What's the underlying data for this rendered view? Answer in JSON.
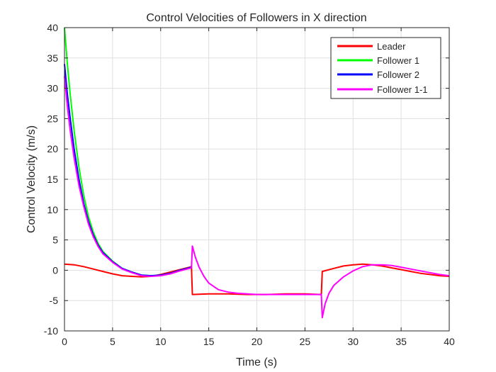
{
  "chart_data": {
    "type": "line",
    "title": "Control Velocities of Followers in X direction",
    "xlabel": "Time (s)",
    "ylabel": "Control Velocity (m/s)",
    "xlim": [
      0,
      40
    ],
    "ylim": [
      -10,
      40
    ],
    "xticks": [
      0,
      5,
      10,
      15,
      20,
      25,
      30,
      35,
      40
    ],
    "yticks": [
      -10,
      -5,
      0,
      5,
      10,
      15,
      20,
      25,
      30,
      35,
      40
    ],
    "grid": true,
    "legend_position": "top-right",
    "series": [
      {
        "name": "Leader",
        "color": "#ff0000",
        "x": [
          0,
          1,
          2,
          3,
          4,
          5,
          6,
          7,
          8,
          9,
          10,
          11,
          12,
          13.2,
          13.3,
          15,
          17,
          19,
          20,
          21,
          23,
          25,
          26.7,
          26.8,
          28,
          29,
          30,
          31,
          32,
          33,
          34,
          35,
          36,
          37,
          38,
          39,
          40
        ],
        "y": [
          1.0,
          0.9,
          0.6,
          0.2,
          -0.2,
          -0.6,
          -0.9,
          -1.0,
          -1.1,
          -1.0,
          -0.7,
          -0.3,
          0.1,
          0.6,
          -4.0,
          -3.9,
          -3.9,
          -4.0,
          -4.0,
          -4.0,
          -3.9,
          -3.9,
          -4.0,
          -0.2,
          0.3,
          0.7,
          0.9,
          1.0,
          0.9,
          0.7,
          0.4,
          0.1,
          -0.2,
          -0.5,
          -0.7,
          -0.9,
          -1.0
        ]
      },
      {
        "name": "Follower 1",
        "color": "#00ff00",
        "x": [
          0,
          0.3,
          0.6,
          1,
          1.5,
          2,
          2.5,
          3,
          3.5,
          4,
          5,
          6,
          7,
          8,
          9,
          10,
          11,
          12,
          13.2
        ],
        "y": [
          40.0,
          34.0,
          29.0,
          23.0,
          17.0,
          12.3,
          8.8,
          6.3,
          4.4,
          3.1,
          1.5,
          0.3,
          -0.3,
          -0.8,
          -0.9,
          -0.8,
          -0.5,
          0.0,
          0.5
        ]
      },
      {
        "name": "Follower 2",
        "color": "#0000ff",
        "x": [
          0,
          0.3,
          0.6,
          1,
          1.5,
          2,
          2.5,
          3,
          3.5,
          4,
          5,
          6,
          7,
          8,
          9,
          10,
          11,
          12,
          13.2
        ],
        "y": [
          34.0,
          29.0,
          25.0,
          20.0,
          15.0,
          11.0,
          8.0,
          5.8,
          4.1,
          2.9,
          1.4,
          0.3,
          -0.3,
          -0.8,
          -0.9,
          -0.8,
          -0.5,
          0.0,
          0.5
        ]
      },
      {
        "name": "Follower 1-1",
        "color": "#ff00ff",
        "x": [
          0,
          0.3,
          0.6,
          1,
          1.5,
          2,
          2.5,
          3,
          3.5,
          4,
          5,
          6,
          7,
          8,
          9,
          10,
          11,
          12,
          13.2,
          13.3,
          13.6,
          14,
          14.5,
          15,
          16,
          17,
          18,
          20,
          22,
          24,
          26.7,
          26.8,
          27.1,
          27.5,
          28,
          29,
          30,
          31,
          32,
          33,
          34,
          35,
          36,
          37,
          38,
          39,
          40
        ],
        "y": [
          32.0,
          27.0,
          23.0,
          18.5,
          14.0,
          10.5,
          7.6,
          5.5,
          3.9,
          2.7,
          1.3,
          0.2,
          -0.4,
          -0.9,
          -1.0,
          -0.9,
          -0.6,
          -0.1,
          0.4,
          4.0,
          2.2,
          0.5,
          -1.0,
          -2.1,
          -3.2,
          -3.6,
          -3.8,
          -4.0,
          -4.0,
          -4.0,
          -4.0,
          -7.8,
          -5.5,
          -3.8,
          -2.5,
          -1.1,
          -0.1,
          0.6,
          0.9,
          0.9,
          0.8,
          0.5,
          0.2,
          -0.1,
          -0.4,
          -0.7,
          -0.9
        ]
      }
    ]
  }
}
